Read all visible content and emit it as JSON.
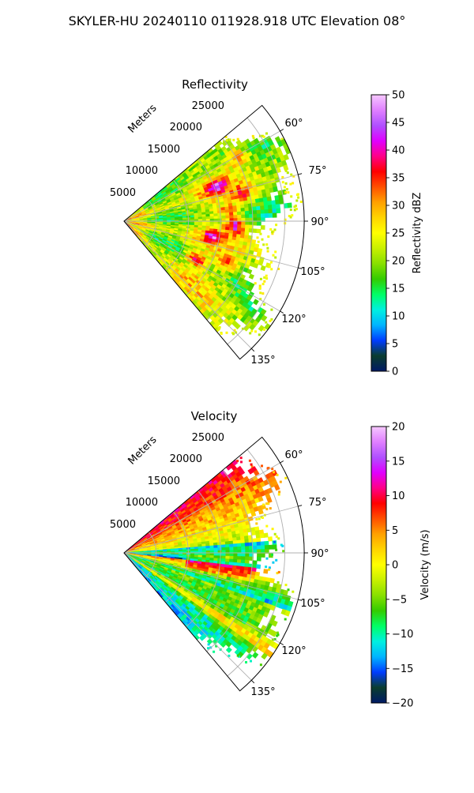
{
  "title": "SKYLER-HU  20240110  011928.918 UTC Elevation 08°",
  "chart_data": [
    {
      "type": "heatmap",
      "subtype": "polar-sector-ppi",
      "title": "Reflectivity",
      "radial_label": "Meters",
      "radial_ticks": [
        "5000",
        "10000",
        "15000",
        "20000",
        "25000"
      ],
      "angle_ticks": [
        "60°",
        "75°",
        "90°",
        "105°",
        "120°",
        "135°"
      ],
      "azimuth_range_deg": [
        50,
        140
      ],
      "range_max_m": 28000,
      "colorbar": {
        "label": "Reflectivity dBZ",
        "range": [
          0,
          50
        ],
        "ticks": [
          "0",
          "5",
          "10",
          "15",
          "20",
          "25",
          "30",
          "35",
          "40",
          "45",
          "50"
        ],
        "colors": [
          "#001a66",
          "#0a3d2e",
          "#003cff",
          "#00b4ff",
          "#00f0e0",
          "#00ff66",
          "#33cc00",
          "#88e000",
          "#c8f000",
          "#ffff00",
          "#ffd400",
          "#ffa000",
          "#ff5000",
          "#ff0000",
          "#ff0088",
          "#e000ff",
          "#b050ff",
          "#e080ff",
          "#f6c8ff"
        ]
      }
    },
    {
      "type": "heatmap",
      "subtype": "polar-sector-ppi",
      "title": "Velocity",
      "radial_label": "Meters",
      "radial_ticks": [
        "5000",
        "10000",
        "15000",
        "20000",
        "25000"
      ],
      "angle_ticks": [
        "60°",
        "75°",
        "90°",
        "105°",
        "120°",
        "135°"
      ],
      "azimuth_range_deg": [
        50,
        140
      ],
      "range_max_m": 28000,
      "colorbar": {
        "label": "Velocity (m/s)",
        "range": [
          -20,
          20
        ],
        "ticks": [
          "20",
          "15",
          "10",
          "5",
          "0",
          "−5",
          "−10",
          "−15",
          "−20"
        ],
        "colors": [
          "#001a66",
          "#0a3d2e",
          "#003cff",
          "#00b4ff",
          "#00f0e0",
          "#00ff66",
          "#33cc00",
          "#88e000",
          "#c8f000",
          "#ffff00",
          "#ffd400",
          "#ffa000",
          "#ff5000",
          "#ff0000",
          "#ff0088",
          "#e000ff",
          "#b050ff",
          "#e080ff",
          "#f6c8ff"
        ]
      }
    }
  ]
}
